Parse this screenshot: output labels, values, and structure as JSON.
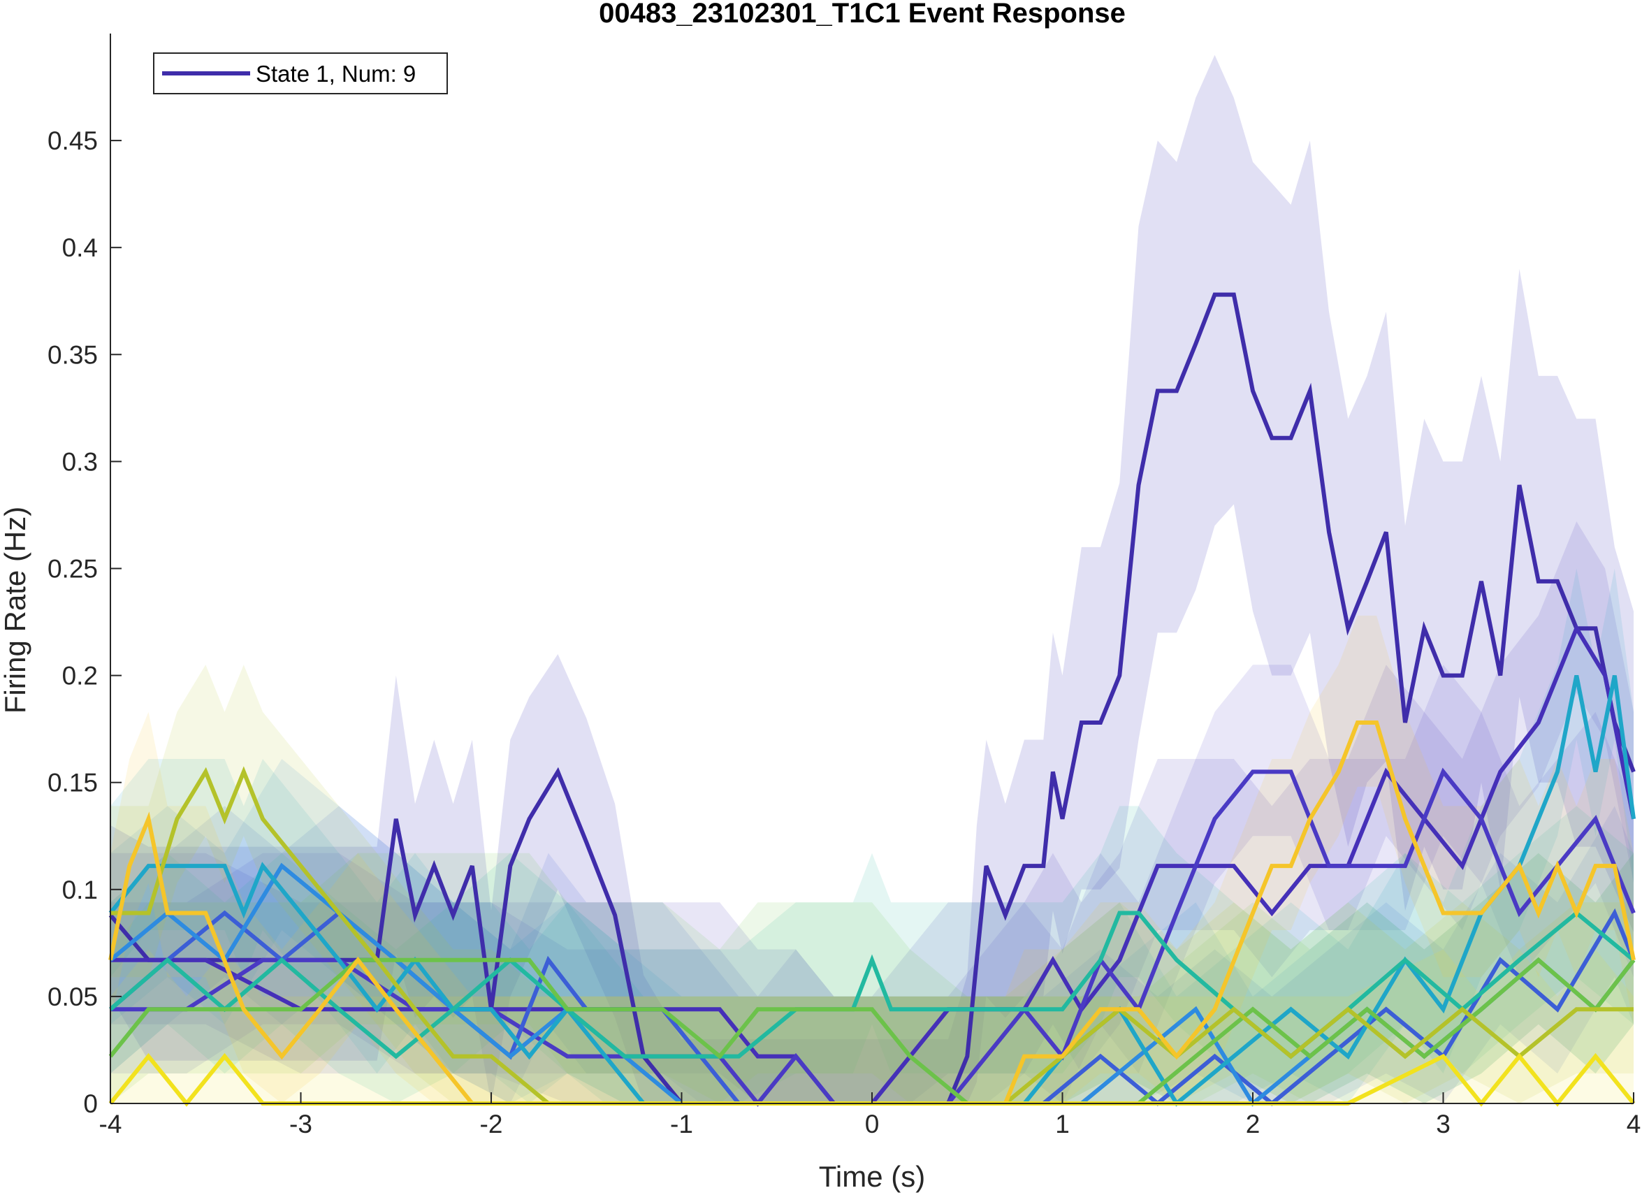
{
  "chart_data": {
    "type": "line",
    "title": "00483_23102301_T1C1 Event Response",
    "xlabel": "Time (s)",
    "ylabel": "Firing Rate (Hz)",
    "xlim": [
      -4,
      4
    ],
    "ylim": [
      0,
      0.5
    ],
    "xticks": [
      -4,
      -3,
      -2,
      -1,
      0,
      1,
      2,
      3,
      4
    ],
    "xtick_labels": [
      "-4",
      "-3",
      "-2",
      "-1",
      "0",
      "1",
      "2",
      "3",
      "4"
    ],
    "yticks": [
      0,
      0.05,
      0.1,
      0.15,
      0.2,
      0.25,
      0.3,
      0.35,
      0.4,
      0.45
    ],
    "ytick_labels": [
      "0",
      "0.05",
      "0.1",
      "0.15",
      "0.2",
      "0.25",
      "0.3",
      "0.35",
      "0.4",
      "0.45"
    ],
    "grid": false,
    "legend": {
      "position": "top-left",
      "entries": [
        "State 1, Num: 9"
      ]
    },
    "series": [
      {
        "name": "State 1, Num: 9",
        "color": "#3F2DAA",
        "shade_color": "#C9C6EB",
        "x": [
          -4,
          -3.8,
          -3.6,
          -3.4,
          -3.2,
          -3.0,
          -2.8,
          -2.6,
          -2.5,
          -2.4,
          -2.3,
          -2.2,
          -2.1,
          -2.0,
          -1.9,
          -1.8,
          -1.65,
          -1.5,
          -1.35,
          -1.2,
          -1.0,
          -0.8,
          -0.6,
          -0.4,
          -0.2,
          0.0,
          0.2,
          0.4,
          0.5,
          0.55,
          0.6,
          0.7,
          0.8,
          0.9,
          0.95,
          1.0,
          1.1,
          1.2,
          1.3,
          1.4,
          1.5,
          1.6,
          1.7,
          1.8,
          1.9,
          2.0,
          2.1,
          2.2,
          2.3,
          2.4,
          2.5,
          2.6,
          2.7,
          2.8,
          2.9,
          3.0,
          3.1,
          3.2,
          3.3,
          3.4,
          3.5,
          3.6,
          3.7,
          3.8,
          3.9,
          4.0
        ],
        "y": [
          0.088,
          0.067,
          0.067,
          0.067,
          0.067,
          0.067,
          0.067,
          0.067,
          0.133,
          0.088,
          0.111,
          0.088,
          0.111,
          0.044,
          0.111,
          0.133,
          0.155,
          0.122,
          0.088,
          0.022,
          0.0,
          0.0,
          0.0,
          0.0,
          0.0,
          0.0,
          0.0,
          0.0,
          0.022,
          0.067,
          0.111,
          0.088,
          0.111,
          0.111,
          0.155,
          0.133,
          0.178,
          0.178,
          0.2,
          0.289,
          0.333,
          0.333,
          0.355,
          0.378,
          0.378,
          0.333,
          0.311,
          0.311,
          0.333,
          0.267,
          0.222,
          0.244,
          0.267,
          0.178,
          0.222,
          0.2,
          0.2,
          0.244,
          0.2,
          0.289,
          0.244,
          0.244,
          0.222,
          0.222,
          0.178,
          0.155
        ],
        "upper": [
          0.13,
          0.12,
          0.12,
          0.12,
          0.12,
          0.12,
          0.12,
          0.12,
          0.2,
          0.14,
          0.17,
          0.14,
          0.17,
          0.09,
          0.17,
          0.19,
          0.21,
          0.18,
          0.14,
          0.06,
          0.03,
          0.03,
          0.03,
          0.03,
          0.03,
          0.03,
          0.03,
          0.03,
          0.06,
          0.13,
          0.17,
          0.14,
          0.17,
          0.17,
          0.22,
          0.2,
          0.26,
          0.26,
          0.29,
          0.41,
          0.45,
          0.44,
          0.47,
          0.49,
          0.47,
          0.44,
          0.43,
          0.42,
          0.45,
          0.37,
          0.32,
          0.34,
          0.37,
          0.27,
          0.32,
          0.3,
          0.3,
          0.34,
          0.3,
          0.39,
          0.34,
          0.34,
          0.32,
          0.32,
          0.26,
          0.23
        ],
        "lower": [
          0.05,
          0.02,
          0.02,
          0.02,
          0.02,
          0.02,
          0.02,
          0.02,
          0.07,
          0.04,
          0.05,
          0.04,
          0.05,
          0.0,
          0.05,
          0.07,
          0.1,
          0.07,
          0.04,
          0.0,
          0.0,
          0.0,
          0.0,
          0.0,
          0.0,
          0.0,
          0.0,
          0.0,
          0.0,
          0.01,
          0.05,
          0.04,
          0.05,
          0.05,
          0.09,
          0.07,
          0.1,
          0.1,
          0.11,
          0.17,
          0.22,
          0.22,
          0.24,
          0.27,
          0.28,
          0.23,
          0.2,
          0.2,
          0.22,
          0.16,
          0.12,
          0.15,
          0.16,
          0.09,
          0.12,
          0.1,
          0.1,
          0.15,
          0.1,
          0.19,
          0.15,
          0.15,
          0.12,
          0.12,
          0.1,
          0.08
        ]
      },
      {
        "color": "#4530B8",
        "x": [
          -4,
          -3.5,
          -3.0,
          -2.5,
          -2.0,
          -1.5,
          -1.2,
          -1.0,
          -0.8,
          -0.6,
          -0.4,
          -0.2,
          0.0,
          0.2,
          0.4,
          0.6,
          0.8,
          0.95,
          1.1,
          1.3,
          1.5,
          1.7,
          1.9,
          2.1,
          2.3,
          2.5,
          2.7,
          2.9,
          3.1,
          3.3,
          3.5,
          3.7,
          3.85,
          4.0
        ],
        "y": [
          0.067,
          0.067,
          0.044,
          0.044,
          0.044,
          0.044,
          0.044,
          0.044,
          0.044,
          0.022,
          0.022,
          0.0,
          0.0,
          0.022,
          0.044,
          0.044,
          0.044,
          0.067,
          0.044,
          0.067,
          0.111,
          0.111,
          0.111,
          0.089,
          0.111,
          0.111,
          0.155,
          0.133,
          0.111,
          0.155,
          0.178,
          0.222,
          0.2,
          0.133
        ]
      },
      {
        "color": "#4A3AC4",
        "x": [
          -4,
          -3.6,
          -3.2,
          -2.8,
          -2.4,
          -2.0,
          -1.6,
          -1.2,
          -0.8,
          -0.6,
          -0.4,
          -0.2,
          0.0,
          0.4,
          0.6,
          0.8,
          1.0,
          1.2,
          1.4,
          1.6,
          1.8,
          2.0,
          2.2,
          2.4,
          2.6,
          2.8,
          3.0,
          3.2,
          3.4,
          3.6,
          3.8,
          4.0
        ],
        "y": [
          0.044,
          0.044,
          0.067,
          0.067,
          0.044,
          0.044,
          0.022,
          0.022,
          0.022,
          0.0,
          0.022,
          0.0,
          0.0,
          0.0,
          0.022,
          0.044,
          0.022,
          0.067,
          0.044,
          0.089,
          0.133,
          0.155,
          0.155,
          0.111,
          0.111,
          0.111,
          0.155,
          0.133,
          0.089,
          0.111,
          0.133,
          0.089
        ]
      },
      {
        "color": "#3C5ED6",
        "x": [
          -4,
          -3.7,
          -3.4,
          -3.1,
          -2.8,
          -2.5,
          -2.2,
          -1.9,
          -1.7,
          -1.5,
          -1.3,
          -1.1,
          -0.9,
          -0.7,
          -0.5,
          -0.3,
          -0.1,
          0.1,
          0.3,
          0.6,
          0.9,
          1.2,
          1.5,
          1.8,
          2.1,
          2.4,
          2.7,
          3.0,
          3.3,
          3.6,
          3.9,
          4.0
        ],
        "y": [
          0.044,
          0.067,
          0.089,
          0.067,
          0.089,
          0.067,
          0.044,
          0.022,
          0.067,
          0.044,
          0.044,
          0.044,
          0.022,
          0.0,
          0.0,
          0.0,
          0.0,
          0.0,
          0.0,
          0.0,
          0.0,
          0.022,
          0.0,
          0.022,
          0.0,
          0.022,
          0.044,
          0.022,
          0.067,
          0.044,
          0.089,
          0.067
        ]
      },
      {
        "color": "#2E8BE0",
        "x": [
          -4,
          -3.7,
          -3.4,
          -3.1,
          -2.8,
          -2.5,
          -2.2,
          -1.9,
          -1.6,
          -1.3,
          -1.0,
          -0.7,
          -0.4,
          -0.1,
          0.2,
          0.5,
          0.8,
          1.1,
          1.4,
          1.7,
          2.0,
          2.3,
          2.6,
          2.9,
          3.2,
          3.5,
          3.8,
          4.0
        ],
        "y": [
          0.067,
          0.089,
          0.067,
          0.111,
          0.089,
          0.067,
          0.044,
          0.022,
          0.044,
          0.022,
          0.0,
          0.0,
          0.0,
          0.0,
          0.0,
          0.0,
          0.0,
          0.0,
          0.022,
          0.044,
          0.0,
          0.022,
          0.044,
          0.022,
          0.044,
          0.067,
          0.044,
          0.067
        ]
      },
      {
        "color": "#1FA6C8",
        "x": [
          -4,
          -3.8,
          -3.6,
          -3.4,
          -3.3,
          -3.2,
          -3.0,
          -2.8,
          -2.6,
          -2.4,
          -2.2,
          -2.0,
          -1.8,
          -1.6,
          -1.4,
          -1.2,
          -1.0,
          -0.8,
          -0.6,
          -0.4,
          -0.2,
          0.0,
          0.4,
          0.8,
          1.0,
          1.3,
          1.6,
          1.9,
          2.2,
          2.5,
          2.8,
          3.0,
          3.2,
          3.4,
          3.6,
          3.7,
          3.8,
          3.9,
          4.0
        ],
        "y": [
          0.089,
          0.111,
          0.111,
          0.111,
          0.089,
          0.111,
          0.089,
          0.067,
          0.044,
          0.067,
          0.044,
          0.044,
          0.022,
          0.044,
          0.022,
          0.0,
          0.0,
          0.0,
          0.0,
          0.0,
          0.0,
          0.0,
          0.0,
          0.0,
          0.022,
          0.044,
          0.0,
          0.022,
          0.044,
          0.022,
          0.067,
          0.044,
          0.089,
          0.111,
          0.155,
          0.2,
          0.155,
          0.2,
          0.133
        ]
      },
      {
        "color": "#22B9A0",
        "x": [
          -4,
          -3.7,
          -3.4,
          -3.1,
          -2.8,
          -2.5,
          -2.2,
          -1.9,
          -1.6,
          -1.3,
          -1.0,
          -0.7,
          -0.4,
          -0.1,
          0.0,
          0.1,
          0.4,
          0.7,
          1.0,
          1.2,
          1.3,
          1.4,
          1.6,
          1.9,
          2.2,
          2.5,
          2.8,
          3.1,
          3.4,
          3.7,
          4.0
        ],
        "y": [
          0.044,
          0.067,
          0.044,
          0.067,
          0.044,
          0.022,
          0.044,
          0.067,
          0.044,
          0.022,
          0.022,
          0.022,
          0.044,
          0.044,
          0.067,
          0.044,
          0.044,
          0.044,
          0.044,
          0.067,
          0.089,
          0.089,
          0.067,
          0.044,
          0.022,
          0.044,
          0.067,
          0.044,
          0.067,
          0.089,
          0.067
        ]
      },
      {
        "color": "#6CC24A",
        "x": [
          -4,
          -3.8,
          -3.6,
          -3.3,
          -3.0,
          -2.7,
          -2.4,
          -2.1,
          -1.8,
          -1.6,
          -1.4,
          -1.1,
          -0.8,
          -0.6,
          -0.4,
          -0.2,
          0.0,
          0.2,
          0.5,
          0.8,
          1.1,
          1.4,
          1.7,
          2.0,
          2.3,
          2.6,
          2.9,
          3.2,
          3.5,
          3.8,
          4.0
        ],
        "y": [
          0.022,
          0.044,
          0.044,
          0.044,
          0.044,
          0.067,
          0.067,
          0.067,
          0.067,
          0.044,
          0.044,
          0.044,
          0.022,
          0.044,
          0.044,
          0.044,
          0.044,
          0.022,
          0.0,
          0.0,
          0.0,
          0.0,
          0.022,
          0.044,
          0.022,
          0.044,
          0.022,
          0.044,
          0.067,
          0.044,
          0.067
        ]
      },
      {
        "color": "#B4C22A",
        "x": [
          -4,
          -3.8,
          -3.65,
          -3.5,
          -3.4,
          -3.3,
          -3.2,
          -3.0,
          -2.8,
          -2.6,
          -2.4,
          -2.2,
          -2.0,
          -1.7,
          -1.4,
          -1.1,
          -0.8,
          -0.5,
          -0.2,
          0.1,
          0.4,
          0.7,
          1.0,
          1.3,
          1.6,
          1.9,
          2.2,
          2.5,
          2.8,
          3.1,
          3.4,
          3.7,
          4.0
        ],
        "y": [
          0.089,
          0.089,
          0.133,
          0.155,
          0.133,
          0.155,
          0.133,
          0.111,
          0.089,
          0.067,
          0.044,
          0.022,
          0.022,
          0.0,
          0.0,
          0.0,
          0.0,
          0.0,
          0.0,
          0.0,
          0.0,
          0.0,
          0.022,
          0.044,
          0.022,
          0.044,
          0.022,
          0.044,
          0.022,
          0.044,
          0.022,
          0.044,
          0.044
        ]
      },
      {
        "color": "#F5C52A",
        "x": [
          -4,
          -3.9,
          -3.8,
          -3.7,
          -3.5,
          -3.3,
          -3.1,
          -2.9,
          -2.7,
          -2.5,
          -2.3,
          -2.1,
          -1.9,
          -1.6,
          -1.3,
          -1.0,
          -0.7,
          -0.4,
          -0.1,
          0.2,
          0.5,
          0.7,
          0.8,
          1.0,
          1.2,
          1.4,
          1.6,
          1.8,
          2.0,
          2.1,
          2.2,
          2.3,
          2.45,
          2.55,
          2.65,
          2.8,
          3.0,
          3.2,
          3.4,
          3.5,
          3.6,
          3.7,
          3.8,
          3.9,
          4.0
        ],
        "y": [
          0.067,
          0.111,
          0.133,
          0.089,
          0.089,
          0.044,
          0.022,
          0.044,
          0.067,
          0.044,
          0.022,
          0.0,
          0.0,
          0.0,
          0.0,
          0.0,
          0.0,
          0.0,
          0.0,
          0.0,
          0.0,
          0.0,
          0.022,
          0.022,
          0.044,
          0.044,
          0.022,
          0.044,
          0.089,
          0.111,
          0.111,
          0.133,
          0.155,
          0.178,
          0.178,
          0.133,
          0.089,
          0.089,
          0.111,
          0.089,
          0.111,
          0.089,
          0.111,
          0.111,
          0.067
        ]
      },
      {
        "color": "#F2E21E",
        "x": [
          -4,
          -3.8,
          -3.6,
          -3.4,
          -3.2,
          -3.0,
          -2.8,
          -2.6,
          -2.4,
          -2.2,
          -2.0,
          -1.5,
          -1.0,
          -0.5,
          0.0,
          0.5,
          1.0,
          1.5,
          2.0,
          2.5,
          3.0,
          3.2,
          3.4,
          3.6,
          3.8,
          4.0
        ],
        "y": [
          0.0,
          0.022,
          0.0,
          0.022,
          0.0,
          0.0,
          0.0,
          0.0,
          0.0,
          0.0,
          0.0,
          0.0,
          0.0,
          0.0,
          0.0,
          0.0,
          0.0,
          0.0,
          0.0,
          0.0,
          0.022,
          0.0,
          0.022,
          0.0,
          0.022,
          0.0
        ]
      }
    ]
  }
}
